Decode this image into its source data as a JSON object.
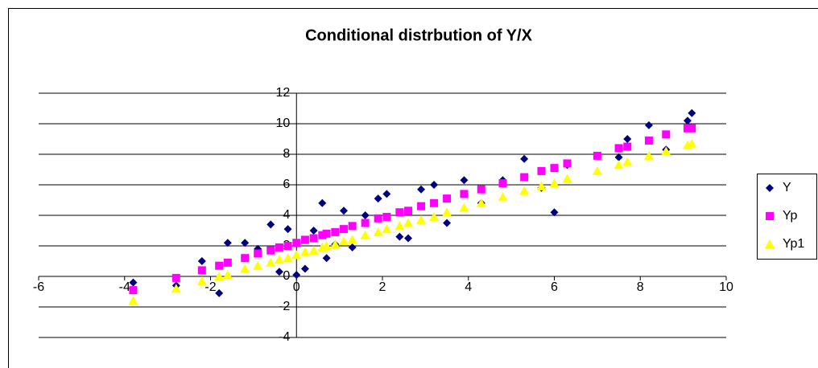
{
  "chart_data": {
    "type": "scatter",
    "title": "Conditional distrbution of Y/X",
    "x": [
      -3.8,
      -2.8,
      -2.2,
      -1.8,
      -1.6,
      -1.2,
      -0.9,
      -0.6,
      -0.4,
      -0.2,
      0,
      0.2,
      0.4,
      0.6,
      0.7,
      0.9,
      1.1,
      1.3,
      1.6,
      1.9,
      2.1,
      2.4,
      2.6,
      2.9,
      3.2,
      3.5,
      3.9,
      4.3,
      4.8,
      5.3,
      5.7,
      6.0,
      6.3,
      7.0,
      7.5,
      7.7,
      8.2,
      8.6,
      9.1,
      9.2
    ],
    "series": [
      {
        "name": "Y",
        "color": "#000080",
        "marker": "diamond",
        "values": [
          -0.4,
          -0.6,
          1.0,
          -1.1,
          2.2,
          2.2,
          1.8,
          3.4,
          0.3,
          3.1,
          0.1,
          0.5,
          3.0,
          4.8,
          1.2,
          2.1,
          4.3,
          1.9,
          4.0,
          5.1,
          5.4,
          2.6,
          2.5,
          5.7,
          6.0,
          3.5,
          6.3,
          4.8,
          6.3,
          7.7,
          5.8,
          4.2,
          7.3,
          7.9,
          7.8,
          9.0,
          9.9,
          8.3,
          10.2,
          10.7
        ]
      },
      {
        "name": "Yp",
        "color": "#ff00ff",
        "marker": "square",
        "values": [
          -0.9,
          -0.1,
          0.4,
          0.7,
          0.9,
          1.2,
          1.5,
          1.7,
          1.9,
          2.0,
          2.2,
          2.4,
          2.5,
          2.7,
          2.8,
          2.9,
          3.1,
          3.3,
          3.5,
          3.8,
          3.9,
          4.2,
          4.3,
          4.6,
          4.8,
          5.1,
          5.4,
          5.7,
          6.1,
          6.5,
          6.9,
          7.1,
          7.4,
          7.9,
          8.4,
          8.5,
          8.9,
          9.3,
          9.7,
          9.7
        ]
      },
      {
        "name": "Yp1",
        "color": "#ffff00",
        "marker": "triangle",
        "values": [
          -1.6,
          -0.8,
          -0.3,
          0.0,
          0.1,
          0.5,
          0.7,
          0.9,
          1.1,
          1.2,
          1.4,
          1.6,
          1.7,
          1.9,
          2.0,
          2.1,
          2.3,
          2.4,
          2.7,
          2.9,
          3.1,
          3.3,
          3.5,
          3.7,
          3.9,
          4.2,
          4.5,
          4.8,
          5.2,
          5.6,
          5.9,
          6.1,
          6.4,
          6.9,
          7.3,
          7.5,
          7.9,
          8.2,
          8.6,
          8.7
        ]
      }
    ],
    "xlim": [
      -6,
      10
    ],
    "xticks": [
      -6,
      -4,
      -2,
      0,
      2,
      4,
      6,
      8,
      10
    ],
    "ylim": [
      -4,
      12
    ],
    "yticks": [
      -4,
      -2,
      0,
      2,
      4,
      6,
      8,
      10,
      12
    ],
    "grid": true,
    "legend": "right"
  }
}
